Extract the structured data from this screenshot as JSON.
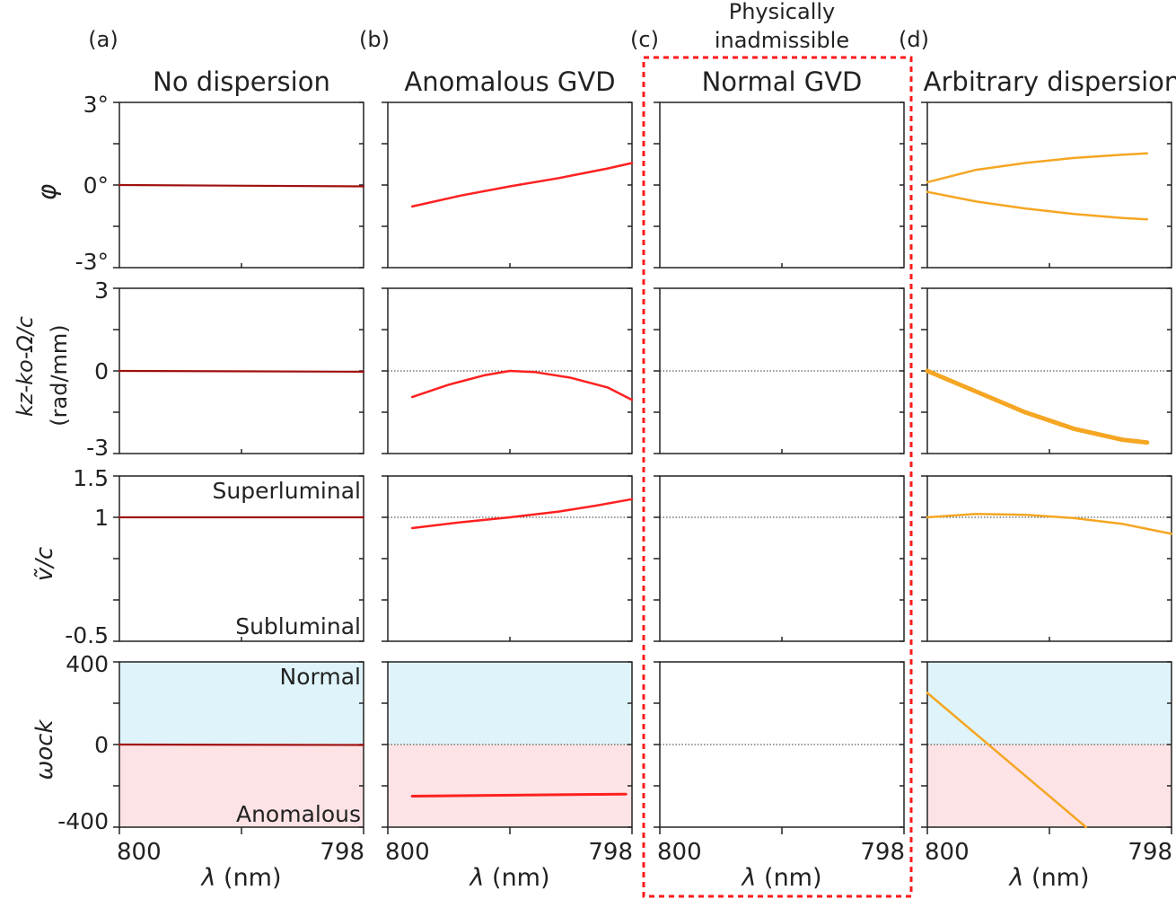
{
  "colors": {
    "axis": "#222222",
    "red": "#ff2020",
    "darkred": "#a01010",
    "orange": "#f5a623",
    "normal_fill": "#dff4fa",
    "anomalous_fill": "#fde3e5",
    "cyan_text": "#1fb7e0",
    "frame": "#ff1a1a"
  },
  "annotation": {
    "line1": "Physically",
    "line2": "inadmissible"
  },
  "chart_data": {
    "type": "line",
    "layout": "4 rows x 4 columns grid of small multiples",
    "x": {
      "label": "λ (nm)",
      "range": [
        800,
        798
      ],
      "tick_labels": [
        "800",
        "798"
      ]
    },
    "columns": [
      {
        "panel": "(a)",
        "title": "No dispersion"
      },
      {
        "panel": "(b)",
        "title": "Anomalous GVD"
      },
      {
        "panel": "(c)",
        "title": "Normal GVD"
      },
      {
        "panel": "(d)",
        "title": "Arbitrary dispersion"
      }
    ],
    "rows": [
      {
        "name": "phi",
        "ylabel": "φ",
        "ylim": [
          -3,
          3
        ],
        "ticks": [
          "3°",
          "0°",
          "-3°"
        ]
      },
      {
        "name": "kz",
        "ylabel": "kz-ko-Ω/c",
        "ylabel2": "(rad/mm)",
        "ylim": [
          -3,
          3
        ],
        "ticks": [
          "3",
          "0",
          "-3"
        ]
      },
      {
        "name": "v",
        "ylabel": "ṽ/c",
        "ylim": [
          -0.5,
          1.5
        ],
        "ticks": [
          "1.5",
          "1",
          "-0.5"
        ],
        "labels": {
          "top": "Superluminal",
          "bottom": "Subluminal"
        }
      },
      {
        "name": "gvd",
        "ylabel": "ωock",
        "ylim": [
          -400,
          400
        ],
        "ticks": [
          "400",
          "0",
          "-400"
        ],
        "labels": {
          "top": "Normal",
          "bottom": "Anomalous"
        }
      }
    ],
    "series": [
      {
        "panel": "a",
        "row": "phi",
        "name": "phi (a)",
        "x": [
          800,
          798
        ],
        "y": [
          0,
          -0.05
        ]
      },
      {
        "panel": "a",
        "row": "kz",
        "name": "kz (a)",
        "x": [
          800,
          798
        ],
        "y": [
          0,
          -0.03
        ]
      },
      {
        "panel": "a",
        "row": "v",
        "name": "v (a)",
        "x": [
          800,
          798
        ],
        "y": [
          1,
          1
        ]
      },
      {
        "panel": "a",
        "row": "gvd",
        "name": "gvd (a)",
        "x": [
          800,
          798
        ],
        "y": [
          0,
          -2
        ]
      },
      {
        "panel": "b",
        "row": "phi",
        "name": "phi (b)",
        "x": [
          799.8,
          799.4,
          799.0,
          798.6,
          798.2,
          798.0
        ],
        "y": [
          -0.78,
          -0.38,
          -0.05,
          0.25,
          0.6,
          0.8
        ]
      },
      {
        "panel": "b",
        "row": "kz",
        "name": "kz (b)",
        "x": [
          799.8,
          799.5,
          799.2,
          799.0,
          798.8,
          798.5,
          798.2,
          798.0
        ],
        "y": [
          -0.95,
          -0.5,
          -0.15,
          0,
          -0.04,
          -0.25,
          -0.6,
          -1.05
        ]
      },
      {
        "panel": "b",
        "row": "v",
        "name": "v (b)",
        "x": [
          799.8,
          799.4,
          799.0,
          798.6,
          798.3,
          798.0
        ],
        "y": [
          0.87,
          0.94,
          1.0,
          1.07,
          1.14,
          1.22
        ]
      },
      {
        "panel": "b",
        "row": "gvd",
        "name": "gvd (b)",
        "x": [
          799.8,
          798.05
        ],
        "y": [
          -250,
          -240
        ]
      },
      {
        "panel": "d",
        "row": "phi",
        "name": "phi (d) upper",
        "x": [
          800,
          799.6,
          799.2,
          798.8,
          798.4,
          798.2
        ],
        "y": [
          0.1,
          0.55,
          0.8,
          0.98,
          1.1,
          1.15
        ]
      },
      {
        "panel": "d",
        "row": "phi",
        "name": "phi (d) lower",
        "x": [
          800,
          799.6,
          799.2,
          798.8,
          798.4,
          798.2
        ],
        "y": [
          -0.25,
          -0.6,
          -0.85,
          -1.05,
          -1.2,
          -1.25
        ]
      },
      {
        "panel": "d",
        "row": "kz",
        "name": "kz (d)",
        "x": [
          800,
          799.6,
          799.2,
          798.8,
          798.4,
          798.2
        ],
        "y": [
          0,
          -0.75,
          -1.5,
          -2.1,
          -2.5,
          -2.6
        ]
      },
      {
        "panel": "d",
        "row": "v",
        "name": "v (d)",
        "x": [
          800,
          799.6,
          799.2,
          798.8,
          798.4,
          798.0
        ],
        "y": [
          1.0,
          1.04,
          1.03,
          0.99,
          0.92,
          0.8
        ]
      },
      {
        "panel": "d",
        "row": "gvd",
        "name": "gvd (d)",
        "x": [
          800,
          798.7
        ],
        "y": [
          250,
          -400
        ]
      }
    ]
  }
}
